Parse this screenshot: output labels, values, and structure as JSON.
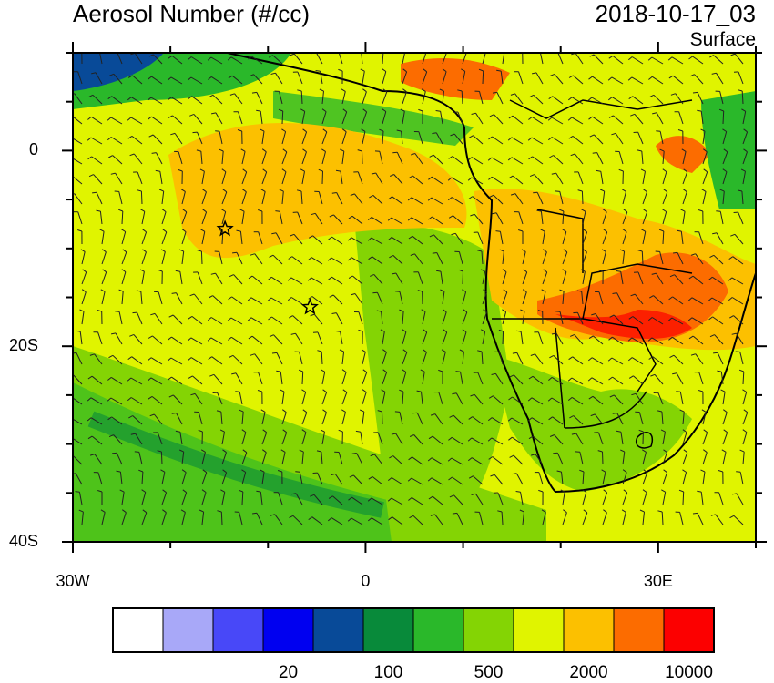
{
  "title": "Aerosol Number (#/cc)",
  "datetime": "2018-10-17_03",
  "level": "Surface",
  "y_ticks": [
    {
      "label": "0",
      "lat": 0
    },
    {
      "label": "20S",
      "lat": -20
    },
    {
      "label": "40S",
      "lat": -40
    }
  ],
  "x_ticks": [
    {
      "label": "30W",
      "lon": -30
    },
    {
      "label": "0",
      "lon": 0
    },
    {
      "label": "30E",
      "lon": 30
    }
  ],
  "map_extent": {
    "lon_min": -30,
    "lon_max": 40,
    "lat_min": -40,
    "lat_max": 10
  },
  "stations": [
    {
      "name": "star-1",
      "lon": -14.4,
      "lat": -8
    },
    {
      "name": "star-2",
      "lon": -5.7,
      "lat": -16
    }
  ],
  "colorbar": {
    "colors": [
      "#ffffff",
      "#a8a8f8",
      "#4848f8",
      "#0000f0",
      "#084a98",
      "#088a3a",
      "#2ab82a",
      "#84d404",
      "#e0f400",
      "#fcc000",
      "#fc6c00",
      "#fc0000"
    ],
    "labels": [
      {
        "text": "20",
        "index": 4
      },
      {
        "text": "100",
        "index": 6
      },
      {
        "text": "500",
        "index": 8
      },
      {
        "text": "2000",
        "index": 10
      },
      {
        "text": "10000",
        "index": 12
      }
    ]
  }
}
